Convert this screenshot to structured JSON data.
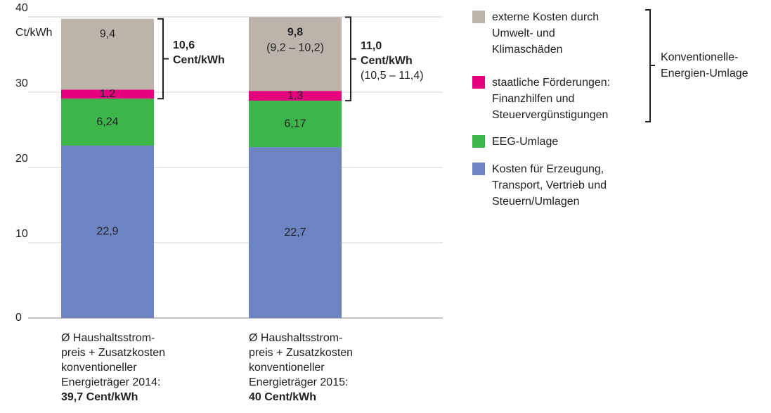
{
  "chart_data": {
    "type": "stacked_bar",
    "y_label": "Ct/kWh",
    "ylim": [
      0,
      40
    ],
    "yticks": [
      0,
      10,
      20,
      30,
      40
    ],
    "grid": true,
    "categories": [
      "Ø Haushaltsstrom-\npreis + Zusatzkosten\nkonventioneller\nEnergieträger 2014:",
      "Ø Haushaltsstrom-\npreis + Zusatzkosten\nkonventioneller\nEnergieträger 2015:"
    ],
    "totals": [
      {
        "value": 39.7,
        "label": "39,7 Cent/kWh"
      },
      {
        "value": 40,
        "label": "40 Cent/kWh"
      }
    ],
    "series": [
      {
        "name": "Kosten für Erzeugung,\nTransport, Vertrieb und\nSteuern/Umlagen",
        "color": "#6e84c2",
        "values": [
          22.9,
          22.7
        ],
        "value_labels": [
          "22,9",
          "22,7"
        ]
      },
      {
        "name": "EEG-Umlage",
        "color": "#3cb64b",
        "values": [
          6.24,
          6.17
        ],
        "value_labels": [
          "6,24",
          "6,17"
        ]
      },
      {
        "name": "staatliche Förderungen:\nFinanzhilfen und\nSteuervergünstigungen",
        "color": "#e5007d",
        "values": [
          1.2,
          1.3
        ],
        "value_labels": [
          "1,2",
          "1,3"
        ]
      },
      {
        "name": "externe Kosten durch\nUmwelt- und\nKlimaschäden",
        "color": "#bcb4aa",
        "values": [
          9.4,
          9.8
        ],
        "value_labels": [
          "9,4",
          "9,8"
        ],
        "ranges": [
          null,
          "(9,2 – 10,2)"
        ]
      }
    ],
    "annotations": [
      {
        "value": 10.6,
        "label": "10,6\nCent/kWh"
      },
      {
        "value": 11.0,
        "label": "11,0\nCent/kWh",
        "range": "(10,5 – 11,4)"
      }
    ],
    "legend_group": "Konventionelle-\nEnergien-Umlage"
  }
}
